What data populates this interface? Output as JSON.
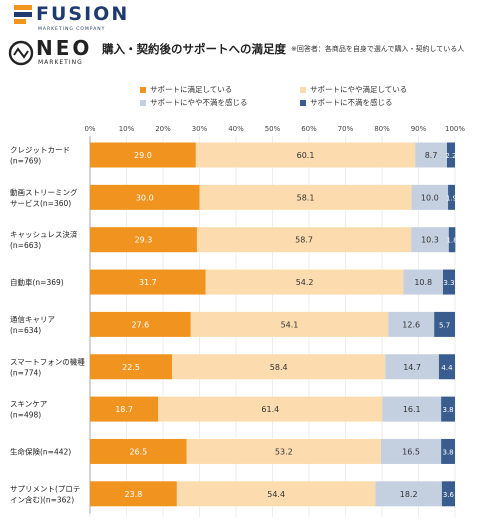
{
  "brand": {
    "fusion_name": "FUSION",
    "fusion_sub": "MARKETING COMPANY",
    "neo_name": "NEO",
    "neo_sub": "MARKETING"
  },
  "header": {
    "title": "購入・契約後のサポートへの満足度",
    "note": "※回答者：各商品を自身で選んで購入・契約している人"
  },
  "colors": [
    "#f0941f",
    "#fcdcae",
    "#c4cfe0",
    "#3a5d8f"
  ],
  "chart_data": {
    "type": "bar",
    "orientation": "horizontal",
    "stacked": true,
    "percent": true,
    "xlim": [
      0,
      100
    ],
    "ticks": [
      "0%",
      "10%",
      "20%",
      "30%",
      "40%",
      "50%",
      "60%",
      "70%",
      "80%",
      "90%",
      "100%"
    ],
    "legend_position": "top",
    "categories": [
      [
        "クレジットカード",
        "(n=769)"
      ],
      [
        "動画ストリーミング",
        "サービス(n=360)"
      ],
      [
        "キャッシュレス決済",
        "(n=663)"
      ],
      [
        "自動車(n=369)"
      ],
      [
        "通信キャリア",
        "(n=634)"
      ],
      [
        "スマートフォンの機種",
        "(n=774)"
      ],
      [
        "スキンケア",
        "(n=498)"
      ],
      [
        "生命保険(n=442)"
      ],
      [
        "サプリメント(プロテ",
        "イン含む)(n=362)"
      ]
    ],
    "series": [
      {
        "name": "サポートに満足している",
        "values": [
          29.0,
          30.0,
          29.3,
          31.7,
          27.6,
          22.5,
          18.7,
          26.5,
          23.8
        ]
      },
      {
        "name": "サポートにやや満足している",
        "values": [
          60.1,
          58.1,
          58.7,
          54.2,
          54.1,
          58.4,
          61.4,
          53.2,
          54.4
        ]
      },
      {
        "name": "サポートにやや不満を感じる",
        "values": [
          8.7,
          10.0,
          10.3,
          10.8,
          12.6,
          14.7,
          16.1,
          16.5,
          18.2
        ]
      },
      {
        "name": "サポートに不満を感じる",
        "values": [
          2.2,
          1.9,
          1.8,
          3.3,
          5.7,
          4.4,
          3.8,
          3.8,
          3.6
        ]
      }
    ]
  }
}
